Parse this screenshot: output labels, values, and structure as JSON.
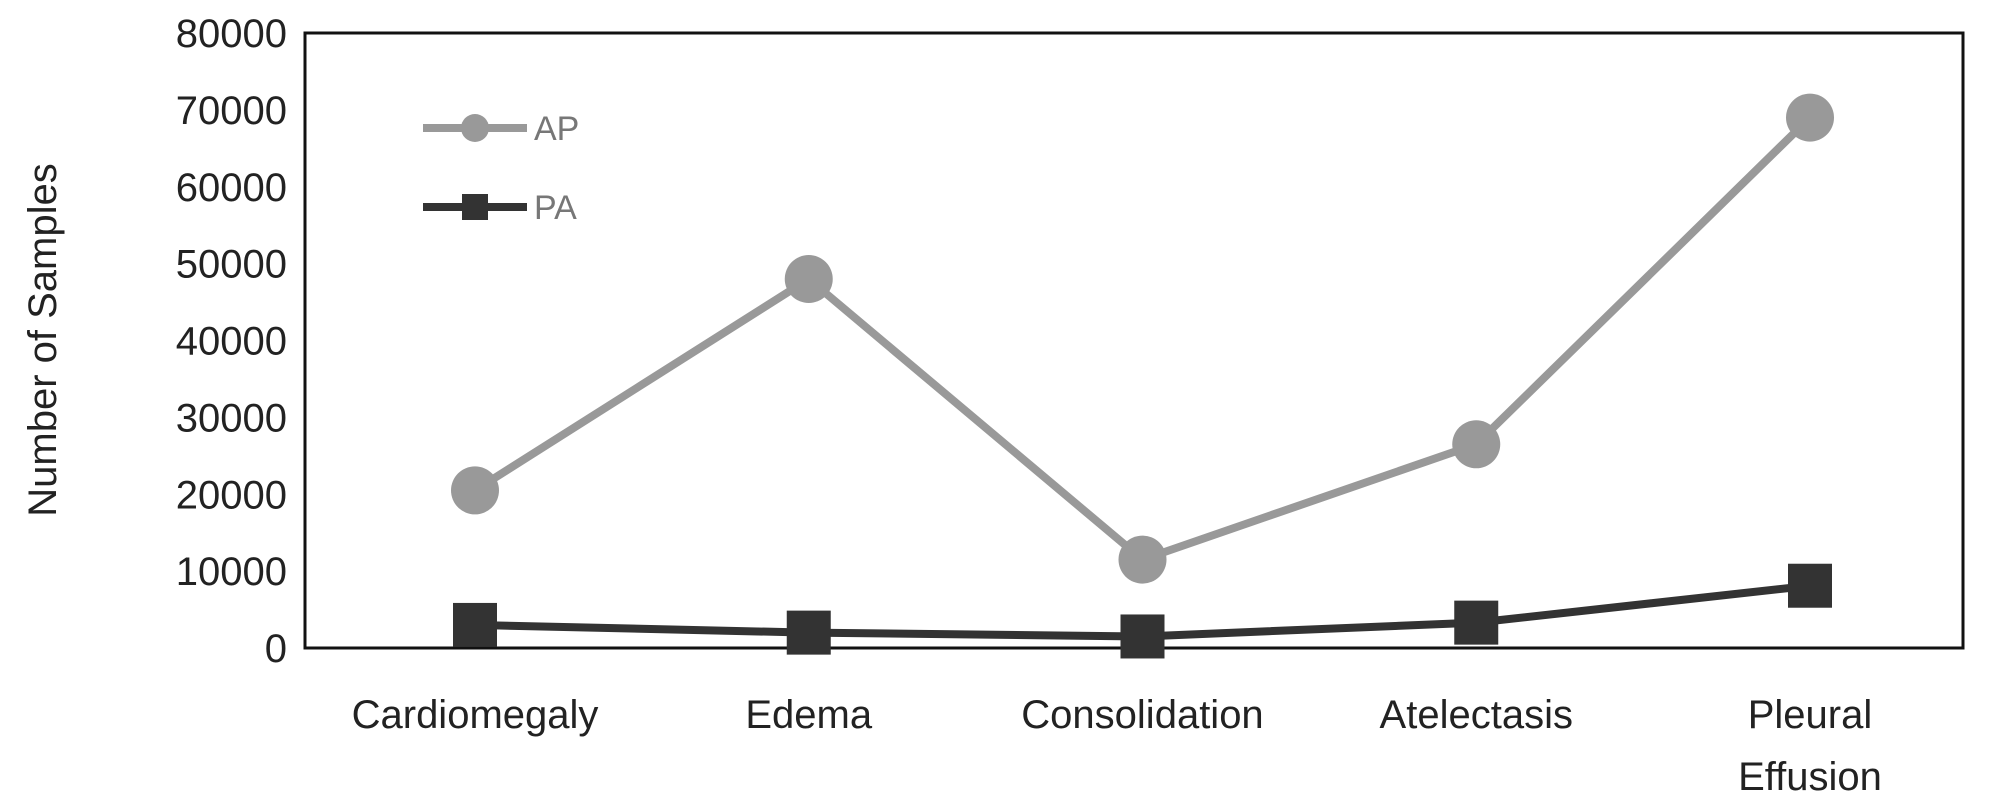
{
  "chart_data": {
    "type": "line",
    "categories": [
      [
        "Cardiomegaly"
      ],
      [
        "Edema"
      ],
      [
        "Consolidation"
      ],
      [
        "Atelectasis"
      ],
      [
        "Pleural",
        "Effusion"
      ]
    ],
    "series": [
      {
        "name": "AP",
        "values": [
          20500,
          48000,
          11500,
          26500,
          69000
        ],
        "color": "#999999",
        "marker": "circle"
      },
      {
        "name": "PA",
        "values": [
          3000,
          2000,
          1500,
          3300,
          8100
        ],
        "color": "#333333",
        "marker": "square"
      }
    ],
    "ylabel": "Number of Samples",
    "ylim": [
      0,
      80000
    ],
    "yticks": [
      "0",
      "10000",
      "20000",
      "30000",
      "40000",
      "50000",
      "60000",
      "70000",
      "80000"
    ],
    "grid": false,
    "legend_position": "top-left"
  }
}
